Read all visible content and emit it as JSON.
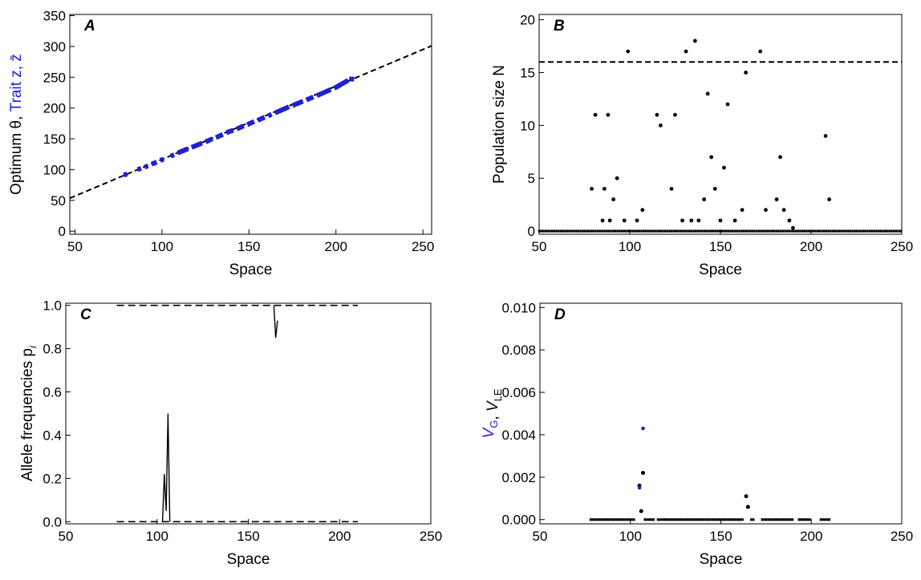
{
  "chart_data": [
    {
      "type": "scatter",
      "panel_label": "A",
      "xlabel": "Space",
      "ylabel_parts": [
        {
          "text": "Optimum θ, ",
          "color": "#000000"
        },
        {
          "text": "Trait z, z̄",
          "color": "#1f1fd6"
        }
      ],
      "xlim": [
        47,
        255
      ],
      "ylim": [
        -5,
        352
      ],
      "xticks": [
        50,
        100,
        150,
        200,
        250
      ],
      "yticks": [
        0,
        50,
        100,
        150,
        200,
        250,
        300,
        350
      ],
      "series": [
        {
          "role": "optimum",
          "style": "dashed-line",
          "color": "#000000",
          "x": [
            47,
            255
          ],
          "y": [
            53.5,
            301.0
          ]
        },
        {
          "role": "trait",
          "style": "blue-segments",
          "color": "#1f1fd6",
          "x": [
            78,
            80,
            86,
            88,
            90,
            92,
            94,
            97,
            99,
            101,
            105,
            107,
            109,
            115,
            117,
            123,
            125,
            129,
            131,
            135,
            137,
            141,
            143,
            147,
            149,
            153,
            155,
            159,
            161,
            163,
            165,
            173,
            175,
            181,
            183,
            187,
            189,
            197,
            199,
            207,
            209
          ],
          "y": [
            91,
            93,
            100,
            102,
            104,
            106,
            109,
            112,
            115,
            117,
            122,
            124,
            127,
            134,
            136,
            143,
            145,
            150,
            152,
            157,
            160,
            164,
            166,
            171,
            173,
            178,
            180,
            185,
            187,
            190,
            192,
            202,
            204,
            211,
            213,
            218,
            220,
            230,
            232,
            245,
            247
          ]
        }
      ]
    },
    {
      "type": "scatter",
      "panel_label": "B",
      "xlabel": "Space",
      "ylabel": "Population size N",
      "xlim": [
        50,
        250
      ],
      "ylim": [
        -0.3,
        20.5
      ],
      "xticks": [
        50,
        100,
        150,
        200,
        250
      ],
      "yticks": [
        0,
        5,
        10,
        15,
        20
      ],
      "reference_line": {
        "y": 16,
        "style": "dashed"
      },
      "points": {
        "x": [
          79,
          81,
          85,
          86,
          88,
          89,
          91,
          93,
          97,
          99,
          104,
          107,
          115,
          117,
          123,
          125,
          129,
          131,
          134,
          136,
          138,
          141,
          143,
          145,
          147,
          150,
          152,
          154,
          158,
          162,
          164,
          172,
          175,
          181,
          183,
          185,
          188,
          190,
          208,
          210
        ],
        "y": [
          4,
          11,
          1,
          4,
          11,
          1,
          3,
          5,
          1,
          17,
          1,
          2,
          11,
          10,
          4,
          11,
          1,
          17,
          1,
          18,
          1,
          3,
          13,
          7,
          4,
          1,
          6,
          12,
          1,
          2,
          15,
          17,
          2,
          3,
          7,
          2,
          1,
          0.3,
          9,
          3
        ]
      },
      "zero_band_x": [
        50,
        250
      ]
    },
    {
      "type": "line",
      "panel_label": "C",
      "xlabel": "Space",
      "ylabel": "Allele frequencies p",
      "ylabel_subscript": "i",
      "xlim": [
        50,
        250
      ],
      "ylim": [
        -0.01,
        1.01
      ],
      "xticks": [
        50,
        100,
        150,
        200,
        250
      ],
      "yticks": [
        "0.0",
        "0.2",
        "0.4",
        "0.6",
        "0.8",
        "1.0"
      ],
      "dash_rows": [
        {
          "y": 1.0,
          "x_range": [
            78,
            210
          ]
        },
        {
          "y": 0.0,
          "x_range": [
            78,
            210
          ]
        }
      ],
      "spikes": [
        {
          "x": [
            103,
            104,
            105,
            106,
            107
          ],
          "y": [
            0,
            0.22,
            0.05,
            0.5,
            0
          ]
        },
        {
          "x": [
            164,
            165,
            166
          ],
          "y": [
            1.0,
            0.85,
            0.93
          ]
        }
      ]
    },
    {
      "type": "scatter",
      "panel_label": "D",
      "xlabel": "Space",
      "ylabel_parts": [
        {
          "text": "V",
          "sub": "G",
          "color": "#1f1fd6"
        },
        {
          "text": ",  ",
          "color": "#000000"
        },
        {
          "text": "V",
          "sub": "LE",
          "color": "#000000"
        }
      ],
      "xlim": [
        50,
        250
      ],
      "ylim": [
        -0.0002,
        0.0102
      ],
      "xticks": [
        50,
        100,
        150,
        200,
        250
      ],
      "yticks": [
        "0.000",
        "0.002",
        "0.004",
        "0.006",
        "0.008",
        "0.010"
      ],
      "zero_band_x": [
        78,
        210
      ],
      "zero_band_gaps": [
        [
          103,
          108
        ],
        [
          113,
          115
        ],
        [
          163,
          166
        ],
        [
          169,
          172
        ],
        [
          190,
          193
        ],
        [
          200,
          205
        ]
      ],
      "points_vg": {
        "x": [
          105,
          107
        ],
        "y": [
          0.0015,
          0.0043
        ]
      },
      "points_vle": {
        "x": [
          105,
          106,
          107,
          164,
          165
        ],
        "y": [
          0.0016,
          0.0004,
          0.0022,
          0.0011,
          0.0006
        ]
      }
    }
  ]
}
